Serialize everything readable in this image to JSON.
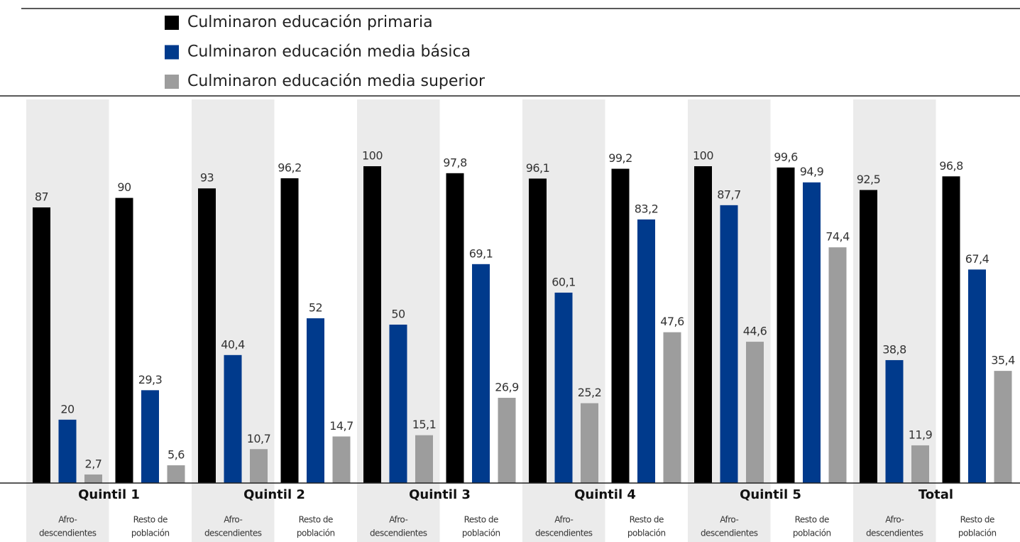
{
  "chart_data": {
    "type": "bar",
    "legend": "top",
    "groups": [
      "Quintil 1",
      "Quintil 2",
      "Quintil 3",
      "Quintil 4",
      "Quintil 5",
      "Total"
    ],
    "categories": [
      [
        "Afro-",
        "descendientes"
      ],
      [
        "Resto de",
        "población"
      ],
      [
        "Afro-",
        "descendientes"
      ],
      [
        "Resto de",
        "población"
      ],
      [
        "Afro-",
        "descendientes"
      ],
      [
        "Resto de",
        "población"
      ],
      [
        "Afro-",
        "descendientes"
      ],
      [
        "Resto de",
        "población"
      ],
      [
        "Afro-",
        "descendientes"
      ],
      [
        "Resto de",
        "población"
      ],
      [
        "Afro-",
        "descendientes"
      ],
      [
        "Resto de",
        "población"
      ]
    ],
    "ylim": [
      0,
      100
    ],
    "series": [
      {
        "name": "Culminaron educación primaria",
        "color": "#000000",
        "values": [
          87,
          90,
          93,
          96.2,
          100,
          97.8,
          96.1,
          99.2,
          100,
          99.6,
          92.5,
          96.8
        ],
        "value_labels": [
          "87",
          "90",
          "93",
          "96,2",
          "100",
          "97,8",
          "96,1",
          "99,2",
          "100",
          "99,6",
          "92,5",
          "96,8"
        ]
      },
      {
        "name": "Culminaron educación media básica",
        "color": "#003a8c",
        "values": [
          20,
          29.3,
          40.4,
          52,
          50,
          69.1,
          60.1,
          83.2,
          87.7,
          94.9,
          38.8,
          67.4
        ],
        "value_labels": [
          "20",
          "29,3",
          "40,4",
          "52",
          "50",
          "69,1",
          "60,1",
          "83,2",
          "87,7",
          "94,9",
          "38,8",
          "67,4"
        ]
      },
      {
        "name": "Culminaron educación media superior",
        "color": "#9d9d9d",
        "values": [
          2.7,
          5.6,
          10.7,
          14.7,
          15.1,
          26.9,
          25.2,
          47.6,
          44.6,
          74.4,
          11.9,
          35.4
        ],
        "value_labels": [
          "2,7",
          "5,6",
          "10,7",
          "14,7",
          "15,1",
          "26,9",
          "25,2",
          "47,6",
          "44,6",
          "74,4",
          "11,9",
          "35,4"
        ]
      }
    ]
  }
}
